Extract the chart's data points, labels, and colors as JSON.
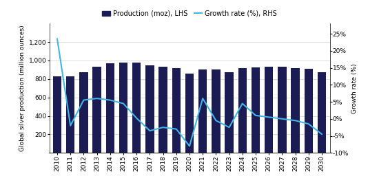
{
  "years": [
    2010,
    2011,
    2012,
    2013,
    2014,
    2015,
    2016,
    2017,
    2018,
    2019,
    2020,
    2021,
    2022,
    2023,
    2024,
    2025,
    2026,
    2027,
    2028,
    2029,
    2030
  ],
  "production": [
    825,
    830,
    870,
    930,
    970,
    975,
    980,
    950,
    935,
    915,
    855,
    905,
    900,
    875,
    915,
    925,
    935,
    935,
    920,
    912,
    875
  ],
  "growth_rate": [
    23.5,
    -2.0,
    5.5,
    6.0,
    5.5,
    4.5,
    0.2,
    -3.5,
    -2.5,
    -3.0,
    -8.0,
    6.0,
    -0.5,
    -2.5,
    4.5,
    1.0,
    0.5,
    0.0,
    -0.5,
    -1.5,
    -4.5
  ],
  "bar_color": "#1c1c54",
  "line_color": "#42b4e6",
  "ylabel_left": "Global silver production (million ounces)",
  "ylabel_right": "Growth rate (%)",
  "ylim_left": [
    0,
    1400
  ],
  "ylim_right": [
    -10,
    28.0
  ],
  "yticks_left": [
    200,
    400,
    600,
    800,
    1000,
    1200
  ],
  "ytick_labels_left": [
    "200",
    "400",
    "600",
    "800",
    "1,000",
    "1,200"
  ],
  "yticks_right": [
    -10,
    -5,
    0,
    5,
    10,
    15,
    20,
    25
  ],
  "ytick_labels_right": [
    "-10%",
    "-5%",
    "0%",
    "5%",
    "10%",
    "15%",
    "20%",
    "25%"
  ],
  "legend_bar_label": "Production (moz), LHS",
  "legend_line_label": "Growth rate (%), RHS",
  "background_color": "#ffffff",
  "grid_color": "#d0d0d0",
  "bar_width": 0.65
}
